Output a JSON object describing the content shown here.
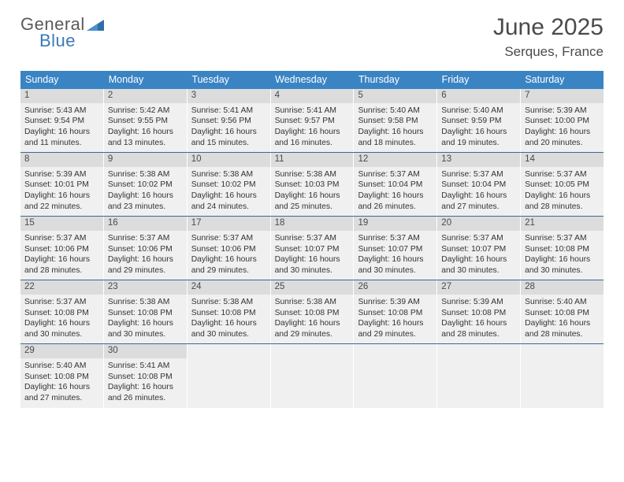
{
  "brand": {
    "line1": "General",
    "line2": "Blue"
  },
  "title": {
    "month": "June 2025",
    "location": "Serques, France"
  },
  "colors": {
    "header_bg": "#3a84c4",
    "header_text": "#ffffff",
    "daynum_bg": "#dcdcdc",
    "cell_bg": "#f0f0f0",
    "row_border": "#3a6a9a",
    "text": "#333333",
    "brand_gray": "#5a5a5a",
    "brand_blue": "#3a7ab8"
  },
  "weekdays": [
    "Sunday",
    "Monday",
    "Tuesday",
    "Wednesday",
    "Thursday",
    "Friday",
    "Saturday"
  ],
  "weeks": [
    [
      {
        "n": "1",
        "sr": "Sunrise: 5:43 AM",
        "ss": "Sunset: 9:54 PM",
        "d1": "Daylight: 16 hours",
        "d2": "and 11 minutes."
      },
      {
        "n": "2",
        "sr": "Sunrise: 5:42 AM",
        "ss": "Sunset: 9:55 PM",
        "d1": "Daylight: 16 hours",
        "d2": "and 13 minutes."
      },
      {
        "n": "3",
        "sr": "Sunrise: 5:41 AM",
        "ss": "Sunset: 9:56 PM",
        "d1": "Daylight: 16 hours",
        "d2": "and 15 minutes."
      },
      {
        "n": "4",
        "sr": "Sunrise: 5:41 AM",
        "ss": "Sunset: 9:57 PM",
        "d1": "Daylight: 16 hours",
        "d2": "and 16 minutes."
      },
      {
        "n": "5",
        "sr": "Sunrise: 5:40 AM",
        "ss": "Sunset: 9:58 PM",
        "d1": "Daylight: 16 hours",
        "d2": "and 18 minutes."
      },
      {
        "n": "6",
        "sr": "Sunrise: 5:40 AM",
        "ss": "Sunset: 9:59 PM",
        "d1": "Daylight: 16 hours",
        "d2": "and 19 minutes."
      },
      {
        "n": "7",
        "sr": "Sunrise: 5:39 AM",
        "ss": "Sunset: 10:00 PM",
        "d1": "Daylight: 16 hours",
        "d2": "and 20 minutes."
      }
    ],
    [
      {
        "n": "8",
        "sr": "Sunrise: 5:39 AM",
        "ss": "Sunset: 10:01 PM",
        "d1": "Daylight: 16 hours",
        "d2": "and 22 minutes."
      },
      {
        "n": "9",
        "sr": "Sunrise: 5:38 AM",
        "ss": "Sunset: 10:02 PM",
        "d1": "Daylight: 16 hours",
        "d2": "and 23 minutes."
      },
      {
        "n": "10",
        "sr": "Sunrise: 5:38 AM",
        "ss": "Sunset: 10:02 PM",
        "d1": "Daylight: 16 hours",
        "d2": "and 24 minutes."
      },
      {
        "n": "11",
        "sr": "Sunrise: 5:38 AM",
        "ss": "Sunset: 10:03 PM",
        "d1": "Daylight: 16 hours",
        "d2": "and 25 minutes."
      },
      {
        "n": "12",
        "sr": "Sunrise: 5:37 AM",
        "ss": "Sunset: 10:04 PM",
        "d1": "Daylight: 16 hours",
        "d2": "and 26 minutes."
      },
      {
        "n": "13",
        "sr": "Sunrise: 5:37 AM",
        "ss": "Sunset: 10:04 PM",
        "d1": "Daylight: 16 hours",
        "d2": "and 27 minutes."
      },
      {
        "n": "14",
        "sr": "Sunrise: 5:37 AM",
        "ss": "Sunset: 10:05 PM",
        "d1": "Daylight: 16 hours",
        "d2": "and 28 minutes."
      }
    ],
    [
      {
        "n": "15",
        "sr": "Sunrise: 5:37 AM",
        "ss": "Sunset: 10:06 PM",
        "d1": "Daylight: 16 hours",
        "d2": "and 28 minutes."
      },
      {
        "n": "16",
        "sr": "Sunrise: 5:37 AM",
        "ss": "Sunset: 10:06 PM",
        "d1": "Daylight: 16 hours",
        "d2": "and 29 minutes."
      },
      {
        "n": "17",
        "sr": "Sunrise: 5:37 AM",
        "ss": "Sunset: 10:06 PM",
        "d1": "Daylight: 16 hours",
        "d2": "and 29 minutes."
      },
      {
        "n": "18",
        "sr": "Sunrise: 5:37 AM",
        "ss": "Sunset: 10:07 PM",
        "d1": "Daylight: 16 hours",
        "d2": "and 30 minutes."
      },
      {
        "n": "19",
        "sr": "Sunrise: 5:37 AM",
        "ss": "Sunset: 10:07 PM",
        "d1": "Daylight: 16 hours",
        "d2": "and 30 minutes."
      },
      {
        "n": "20",
        "sr": "Sunrise: 5:37 AM",
        "ss": "Sunset: 10:07 PM",
        "d1": "Daylight: 16 hours",
        "d2": "and 30 minutes."
      },
      {
        "n": "21",
        "sr": "Sunrise: 5:37 AM",
        "ss": "Sunset: 10:08 PM",
        "d1": "Daylight: 16 hours",
        "d2": "and 30 minutes."
      }
    ],
    [
      {
        "n": "22",
        "sr": "Sunrise: 5:37 AM",
        "ss": "Sunset: 10:08 PM",
        "d1": "Daylight: 16 hours",
        "d2": "and 30 minutes."
      },
      {
        "n": "23",
        "sr": "Sunrise: 5:38 AM",
        "ss": "Sunset: 10:08 PM",
        "d1": "Daylight: 16 hours",
        "d2": "and 30 minutes."
      },
      {
        "n": "24",
        "sr": "Sunrise: 5:38 AM",
        "ss": "Sunset: 10:08 PM",
        "d1": "Daylight: 16 hours",
        "d2": "and 30 minutes."
      },
      {
        "n": "25",
        "sr": "Sunrise: 5:38 AM",
        "ss": "Sunset: 10:08 PM",
        "d1": "Daylight: 16 hours",
        "d2": "and 29 minutes."
      },
      {
        "n": "26",
        "sr": "Sunrise: 5:39 AM",
        "ss": "Sunset: 10:08 PM",
        "d1": "Daylight: 16 hours",
        "d2": "and 29 minutes."
      },
      {
        "n": "27",
        "sr": "Sunrise: 5:39 AM",
        "ss": "Sunset: 10:08 PM",
        "d1": "Daylight: 16 hours",
        "d2": "and 28 minutes."
      },
      {
        "n": "28",
        "sr": "Sunrise: 5:40 AM",
        "ss": "Sunset: 10:08 PM",
        "d1": "Daylight: 16 hours",
        "d2": "and 28 minutes."
      }
    ],
    [
      {
        "n": "29",
        "sr": "Sunrise: 5:40 AM",
        "ss": "Sunset: 10:08 PM",
        "d1": "Daylight: 16 hours",
        "d2": "and 27 minutes."
      },
      {
        "n": "30",
        "sr": "Sunrise: 5:41 AM",
        "ss": "Sunset: 10:08 PM",
        "d1": "Daylight: 16 hours",
        "d2": "and 26 minutes."
      },
      null,
      null,
      null,
      null,
      null
    ]
  ]
}
